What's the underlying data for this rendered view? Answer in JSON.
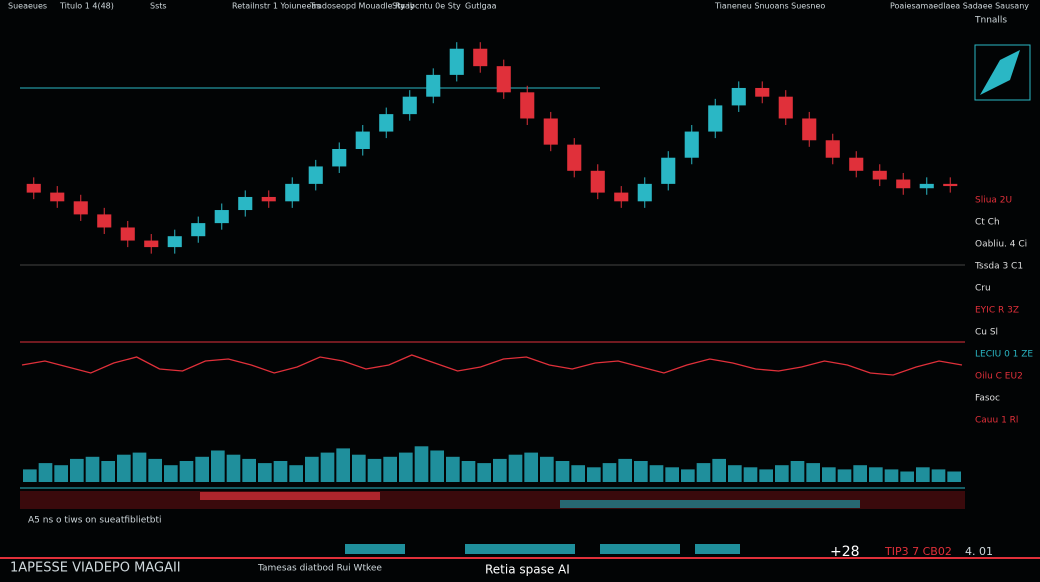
{
  "header": {
    "items": [
      "Sueaeues",
      "Titulo 1 4(48)",
      "Ssts",
      "Retailnstr 1 Yoiuneeas",
      "Tradoseopd Mouadle Ryay",
      "Sta ibcntu 0e Sty",
      "Gutlgaa",
      "Tianeneu Snuoans Suesneo",
      "Poaiesamaedlaea Sadaee Sausany"
    ]
  },
  "chart_data": [
    {
      "type": "candlestick",
      "up_color": "#2ab7c5",
      "down_color": "#e0303a",
      "ylim": [
        0,
        100
      ],
      "open": [
        34,
        30,
        26,
        20,
        14,
        8,
        5,
        10,
        16,
        22,
        28,
        26,
        34,
        42,
        50,
        58,
        66,
        74,
        84,
        96,
        88,
        76,
        64,
        52,
        40,
        30,
        26,
        34,
        46,
        58,
        70,
        78,
        74,
        64,
        54,
        46,
        40,
        36,
        32,
        34
      ],
      "high": [
        37,
        33,
        29,
        23,
        17,
        11,
        13,
        19,
        25,
        31,
        31,
        37,
        45,
        53,
        61,
        69,
        77,
        87,
        99,
        99,
        91,
        79,
        67,
        55,
        43,
        33,
        37,
        49,
        61,
        73,
        81,
        81,
        77,
        67,
        57,
        49,
        43,
        39,
        37,
        37
      ],
      "low": [
        27,
        23,
        17,
        11,
        5,
        2,
        2,
        7,
        13,
        19,
        23,
        23,
        31,
        39,
        47,
        55,
        63,
        71,
        81,
        85,
        73,
        61,
        49,
        37,
        27,
        23,
        23,
        31,
        43,
        55,
        67,
        71,
        61,
        51,
        43,
        37,
        33,
        29,
        29,
        30
      ],
      "close": [
        30,
        26,
        20,
        14,
        8,
        5,
        10,
        16,
        22,
        28,
        26,
        34,
        42,
        50,
        58,
        66,
        74,
        84,
        96,
        88,
        76,
        64,
        52,
        40,
        30,
        26,
        34,
        46,
        58,
        70,
        78,
        74,
        64,
        54,
        46,
        40,
        36,
        32,
        34,
        33
      ]
    },
    {
      "type": "line",
      "color": "#e0303a",
      "ylim": [
        0,
        100
      ],
      "values": [
        50,
        60,
        45,
        30,
        55,
        70,
        40,
        35,
        60,
        65,
        50,
        30,
        45,
        70,
        60,
        40,
        50,
        75,
        55,
        35,
        45,
        65,
        70,
        50,
        40,
        55,
        60,
        45,
        30,
        50,
        65,
        55,
        40,
        35,
        45,
        60,
        50,
        30,
        25,
        45,
        60,
        50
      ]
    },
    {
      "type": "bar",
      "color": "#1f8f9c",
      "ylim": [
        0,
        100
      ],
      "values": [
        30,
        45,
        40,
        55,
        60,
        50,
        65,
        70,
        55,
        40,
        50,
        60,
        75,
        65,
        55,
        45,
        50,
        40,
        60,
        70,
        80,
        65,
        55,
        60,
        70,
        85,
        75,
        60,
        50,
        45,
        55,
        65,
        70,
        60,
        50,
        40,
        35,
        45,
        55,
        50,
        40,
        35,
        30,
        45,
        55,
        40,
        35,
        30,
        40,
        50,
        45,
        35,
        30,
        40,
        35,
        30,
        25,
        35,
        30,
        25
      ]
    }
  ],
  "right_panel": {
    "title": "Tnnalls",
    "items": [
      {
        "text": "Sliua 2U",
        "color": "#e0303a"
      },
      {
        "text": "Ct Ch",
        "color": "#dddddd"
      },
      {
        "text": "Oabliu. 4 Ci",
        "color": "#dddddd"
      },
      {
        "text": "Tssda 3 C1",
        "color": "#dddddd"
      },
      {
        "text": "Cru",
        "color": "#dddddd"
      },
      {
        "text": "EYIC R 3Z",
        "color": "#e0303a"
      },
      {
        "text": "Cu Sl",
        "color": "#dddddd"
      },
      {
        "text": "LECIU 0 1 ZE",
        "color": "#2ab7c5"
      },
      {
        "text": "Oilu C EU2",
        "color": "#e0303a"
      },
      {
        "text": "Fasoc",
        "color": "#dddddd"
      },
      {
        "text": "Cauu 1 Rl",
        "color": "#e0303a"
      }
    ]
  },
  "status": "A5 ns o tiws on sueatfiblietbti",
  "footer": {
    "brand": "1APESSE VIADEPO MAGAII",
    "caption": "Tamesas diatbod Rui Wtkee",
    "ai": "Retia spase AI",
    "delta": "+28",
    "code": "TIP3 7 CB02",
    "small": "4. 01"
  }
}
